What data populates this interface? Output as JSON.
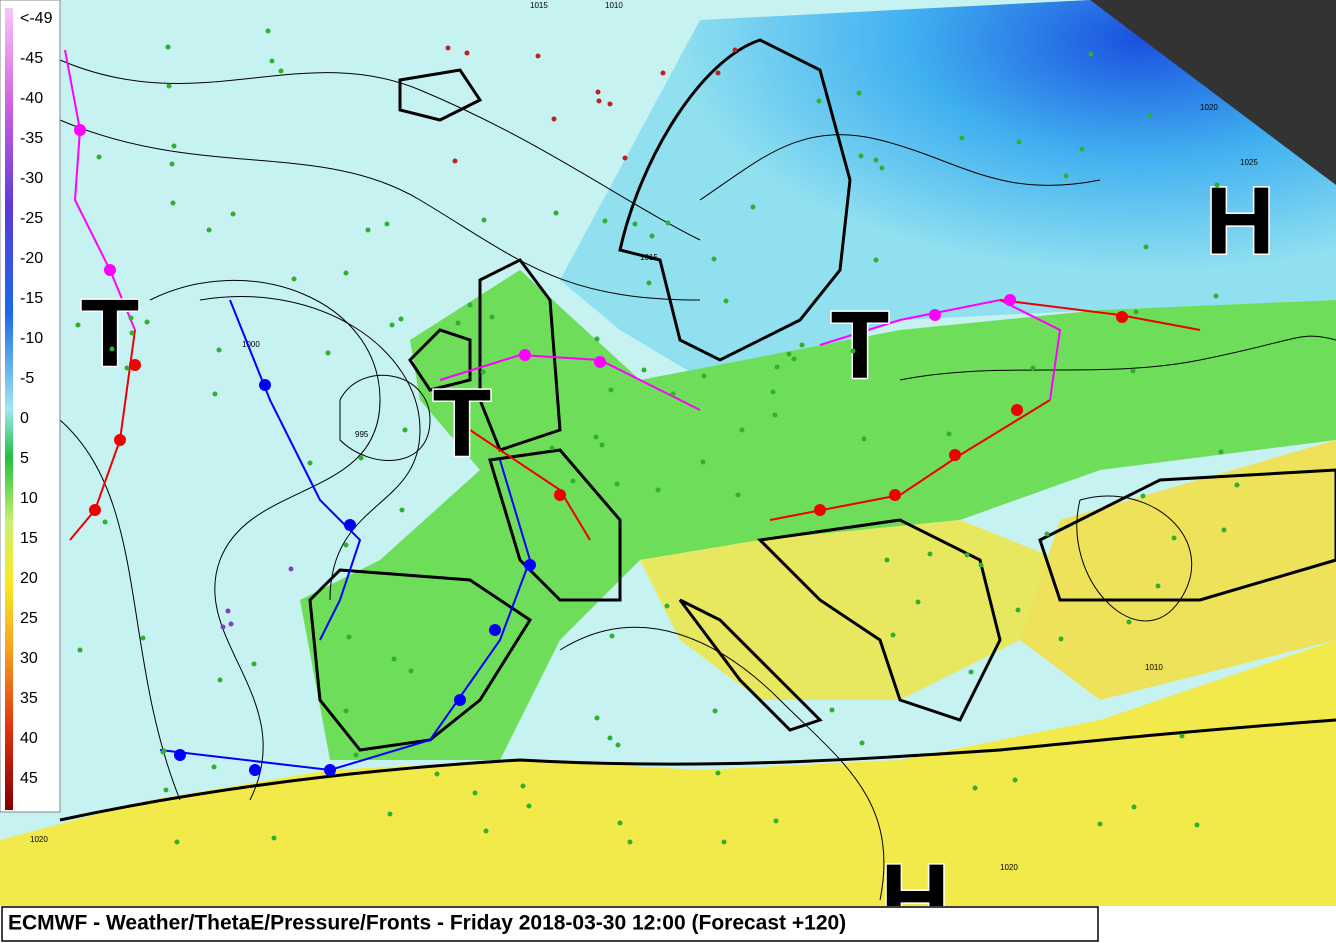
{
  "legend": {
    "labels": [
      "<-49",
      "-45",
      "-40",
      "-35",
      "-30",
      "-25",
      "-20",
      "-15",
      "-10",
      "-5",
      "0",
      "5",
      "10",
      "15",
      "20",
      "25",
      "30",
      "35",
      "40",
      "45"
    ]
  },
  "pressure_centers": [
    {
      "label": "T"
    },
    {
      "label": "T"
    },
    {
      "label": "T"
    },
    {
      "label": "H"
    },
    {
      "label": "H"
    }
  ],
  "isobar_labels": [
    "1015",
    "1010",
    "1000",
    "995",
    "1015",
    "1020",
    "1025",
    "1020",
    "1010",
    "1020"
  ],
  "footer": {
    "title": "ECMWF - Weather/ThetaE/Pressure/Fronts - Friday 2018-03-30 12:00 (Forecast +120)"
  }
}
